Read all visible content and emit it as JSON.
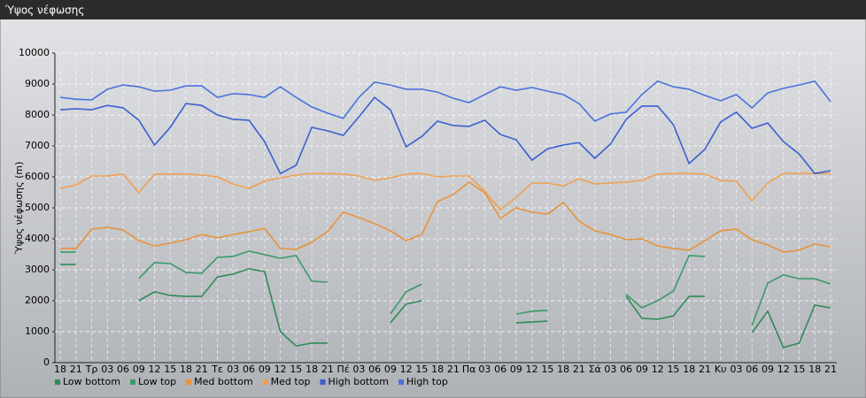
{
  "chart_data": {
    "type": "line",
    "title": "Ύψος νέφωσης",
    "y_label": "Ύψος νέφωσης (m)",
    "categories": [
      "18",
      "21",
      "Τρ",
      "03",
      "06",
      "09",
      "12",
      "15",
      "18",
      "21",
      "Τε",
      "03",
      "06",
      "09",
      "12",
      "15",
      "18",
      "21",
      "Πέ",
      "03",
      "06",
      "09",
      "12",
      "15",
      "18",
      "21",
      "Πα",
      "03",
      "06",
      "09",
      "12",
      "15",
      "18",
      "21",
      "Σά",
      "03",
      "06",
      "09",
      "12",
      "15",
      "18",
      "21",
      "Κυ",
      "03",
      "06",
      "09",
      "12",
      "15",
      "18",
      "21"
    ],
    "ylim": [
      0,
      10000
    ],
    "yticks": [
      0,
      1000,
      2000,
      3000,
      4000,
      5000,
      6000,
      7000,
      8000,
      9000,
      10000
    ],
    "grid": true,
    "legend": "bottom",
    "series": [
      {
        "name": "Low bottom",
        "color": "#2e8b57",
        "values": [
          3170,
          3170,
          null,
          null,
          null,
          2000,
          2290,
          2170,
          2140,
          2140,
          2770,
          2860,
          3030,
          2940,
          1000,
          540,
          630,
          630,
          null,
          null,
          null,
          1290,
          1890,
          2000,
          null,
          null,
          null,
          null,
          null,
          1290,
          1310,
          1340,
          null,
          null,
          null,
          null,
          2140,
          1430,
          1400,
          1510,
          2140,
          2140,
          null,
          null,
          970,
          1660,
          490,
          630,
          1860,
          1770
        ]
      },
      {
        "name": "Low top",
        "color": "#3a9a68",
        "values": [
          3570,
          3570,
          null,
          null,
          null,
          2710,
          3230,
          3200,
          2910,
          2890,
          3400,
          3430,
          3600,
          3490,
          3370,
          3460,
          2630,
          2600,
          null,
          null,
          null,
          1570,
          2290,
          2540,
          null,
          null,
          null,
          null,
          null,
          1570,
          1660,
          1690,
          null,
          null,
          null,
          null,
          2200,
          1770,
          2000,
          2310,
          3460,
          3430,
          null,
          null,
          1200,
          2570,
          2830,
          2710,
          2710,
          2540
        ]
      },
      {
        "name": "Med bottom",
        "color": "#e8923a",
        "values": [
          3690,
          3690,
          4310,
          4370,
          4290,
          3940,
          3770,
          3860,
          3970,
          4140,
          4030,
          4140,
          4230,
          4340,
          3690,
          3660,
          3890,
          4230,
          4860,
          4690,
          4490,
          4260,
          3940,
          4140,
          5200,
          5430,
          5830,
          5490,
          4660,
          5000,
          4860,
          4800,
          5170,
          4570,
          4260,
          4140,
          3970,
          4000,
          3770,
          3690,
          3630,
          3940,
          4260,
          4310,
          3970,
          3800,
          3570,
          3630,
          3830,
          3740
        ]
      },
      {
        "name": "Med top",
        "color": "#f0a050",
        "values": [
          5630,
          5740,
          6030,
          6030,
          6090,
          5490,
          6090,
          6090,
          6090,
          6060,
          6000,
          5770,
          5630,
          5860,
          5970,
          6060,
          6110,
          6110,
          6090,
          6030,
          5890,
          5970,
          6090,
          6110,
          6000,
          6030,
          6030,
          5540,
          4940,
          5340,
          5800,
          5800,
          5710,
          5940,
          5770,
          5800,
          5830,
          5890,
          6090,
          6110,
          6110,
          6090,
          5890,
          5860,
          5230,
          5800,
          6110,
          6110,
          6110,
          6110
        ]
      },
      {
        "name": "High bottom",
        "color": "#3b5fd0",
        "values": [
          8170,
          8200,
          8170,
          8310,
          8230,
          7830,
          7030,
          7600,
          8370,
          8310,
          8000,
          7860,
          7830,
          7140,
          6110,
          6370,
          7600,
          7490,
          7340,
          7940,
          8570,
          8170,
          6970,
          7310,
          7800,
          7660,
          7630,
          7830,
          7370,
          7200,
          6540,
          6910,
          7030,
          7110,
          6600,
          7060,
          7860,
          8290,
          8290,
          7690,
          6430,
          6890,
          7770,
          8090,
          7570,
          7740,
          7140,
          6740,
          6110,
          6200
        ]
      },
      {
        "name": "High top",
        "color": "#4a72dc",
        "values": [
          8570,
          8510,
          8490,
          8830,
          8970,
          8910,
          8770,
          8800,
          8940,
          8940,
          8570,
          8690,
          8660,
          8570,
          8910,
          8570,
          8260,
          8060,
          7890,
          8570,
          9060,
          8970,
          8830,
          8830,
          8740,
          8540,
          8400,
          8660,
          8910,
          8800,
          8890,
          8770,
          8660,
          8370,
          7800,
          8030,
          8090,
          8660,
          9090,
          8910,
          8830,
          8630,
          8460,
          8660,
          8230,
          8710,
          8860,
          8970,
          9090,
          8430
        ]
      }
    ]
  }
}
